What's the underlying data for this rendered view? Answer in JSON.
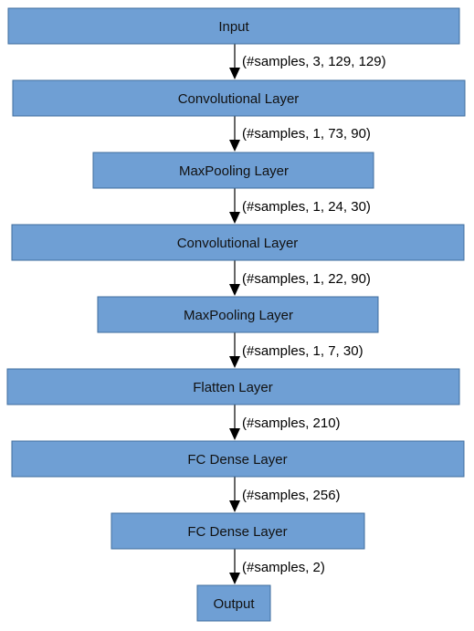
{
  "diagram": {
    "colors": {
      "box_fill": "#6f9fd4",
      "box_stroke": "#3f6e9e",
      "arrow": "#000000"
    },
    "nodes": [
      {
        "id": "input",
        "label": "Input"
      },
      {
        "id": "conv1",
        "label": "Convolutional Layer"
      },
      {
        "id": "pool1",
        "label": "MaxPooling Layer"
      },
      {
        "id": "conv2",
        "label": "Convolutional Layer"
      },
      {
        "id": "pool2",
        "label": "MaxPooling Layer"
      },
      {
        "id": "flatten",
        "label": "Flatten Layer"
      },
      {
        "id": "dense1",
        "label": "FC Dense Layer"
      },
      {
        "id": "dense2",
        "label": "FC Dense Layer"
      },
      {
        "id": "output",
        "label": "Output"
      }
    ],
    "edges": [
      {
        "from": "input",
        "to": "conv1",
        "label": "(#samples, 3, 129, 129)"
      },
      {
        "from": "conv1",
        "to": "pool1",
        "label": "(#samples, 1, 73, 90)"
      },
      {
        "from": "pool1",
        "to": "conv2",
        "label": "(#samples, 1, 24, 30)"
      },
      {
        "from": "conv2",
        "to": "pool2",
        "label": "(#samples, 1, 22, 90)"
      },
      {
        "from": "pool2",
        "to": "flatten",
        "label": "(#samples, 1, 7, 30)"
      },
      {
        "from": "flatten",
        "to": "dense1",
        "label": "(#samples, 210)"
      },
      {
        "from": "dense1",
        "to": "dense2",
        "label": "(#samples, 256)"
      },
      {
        "from": "dense2",
        "to": "output",
        "label": "(#samples, 2)"
      }
    ]
  }
}
